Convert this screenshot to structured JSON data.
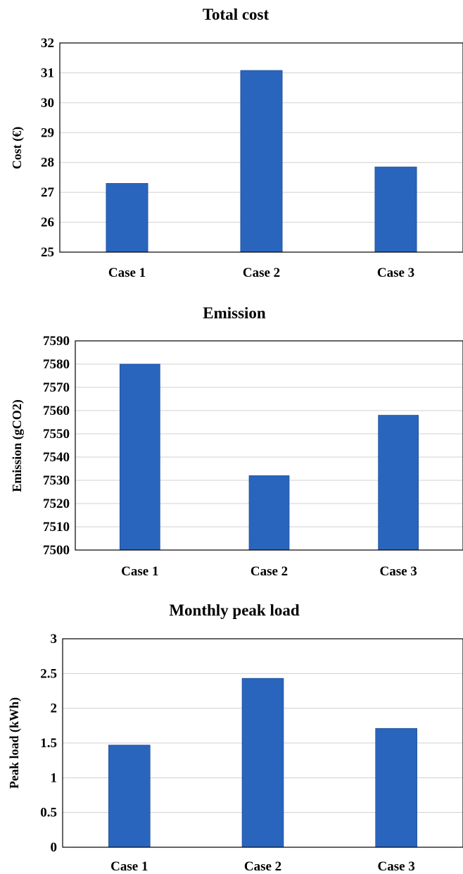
{
  "chart_data": [
    {
      "type": "bar",
      "title": "Total cost",
      "xlabel": "",
      "ylabel": "Cost (€)",
      "categories": [
        "Case 1",
        "Case 2",
        "Case 3"
      ],
      "values": [
        27.3,
        31.08,
        27.85
      ],
      "ylim": [
        25,
        32
      ],
      "yticks": [
        25,
        26,
        27,
        28,
        29,
        30,
        31,
        32
      ],
      "ytick_labels": [
        "25",
        "26",
        "27",
        "28",
        "29",
        "30",
        "31",
        "32"
      ],
      "grid": true,
      "bar_color": "#2a65bd"
    },
    {
      "type": "bar",
      "title": "Emission",
      "xlabel": "",
      "ylabel": "Emission (gCO2)",
      "categories": [
        "Case 1",
        "Case 2",
        "Case 3"
      ],
      "values": [
        7580,
        7532,
        7558
      ],
      "ylim": [
        7500,
        7590
      ],
      "yticks": [
        7500,
        7510,
        7520,
        7530,
        7540,
        7550,
        7560,
        7570,
        7580,
        7590
      ],
      "ytick_labels": [
        "7500",
        "7510",
        "7520",
        "7530",
        "7540",
        "7550",
        "7560",
        "7570",
        "7580",
        "7590"
      ],
      "grid": true,
      "bar_color": "#2a65bd"
    },
    {
      "type": "bar",
      "title": "Monthly peak load",
      "xlabel": "",
      "ylabel": "Peak load (kWh)",
      "categories": [
        "Case 1",
        "Case 2",
        "Case 3"
      ],
      "values": [
        1.47,
        2.43,
        1.71
      ],
      "ylim": [
        0,
        3
      ],
      "yticks": [
        0,
        0.5,
        1,
        1.5,
        2,
        2.5,
        3
      ],
      "ytick_labels": [
        "0",
        "0.5",
        "1",
        "1.5",
        "2",
        "2.5",
        "3"
      ],
      "grid": true,
      "bar_color": "#2a65bd"
    }
  ]
}
